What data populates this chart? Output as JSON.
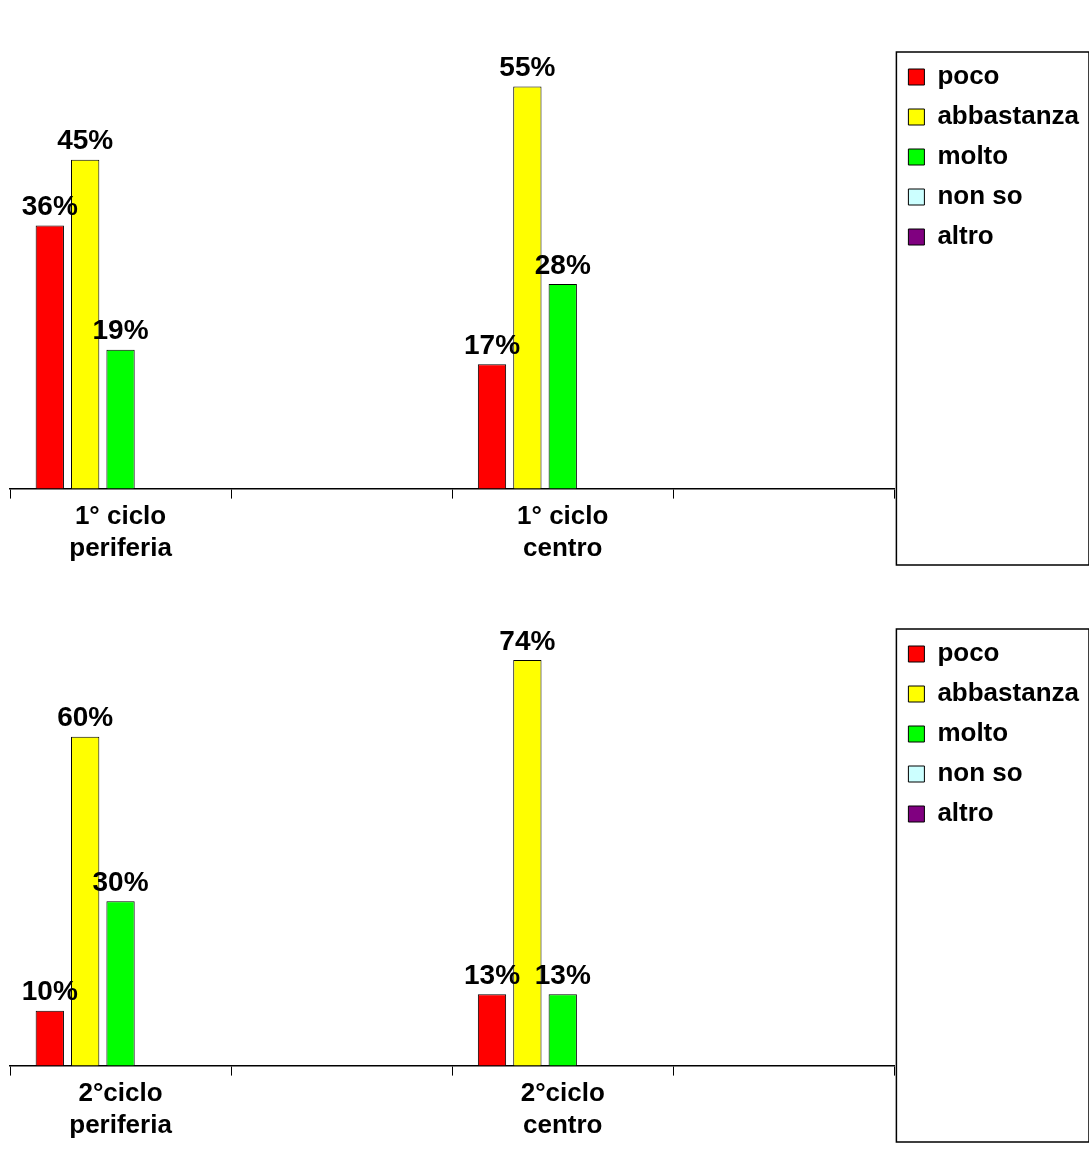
{
  "chart_data": [
    {
      "type": "bar",
      "categories": [
        "1° ciclo periferia",
        null,
        "1° ciclo centro",
        null
      ],
      "legend": "right",
      "series": [
        {
          "name": "poco",
          "color": "#ff0000",
          "values": [
            36,
            null,
            17,
            null
          ],
          "value_labels": [
            "36%",
            null,
            "17%",
            null
          ]
        },
        {
          "name": "abbastanza",
          "color": "#ffff00",
          "values": [
            45,
            null,
            55,
            null
          ],
          "value_labels": [
            "45%",
            null,
            "55%",
            null
          ]
        },
        {
          "name": "molto",
          "color": "#00ff00",
          "values": [
            19,
            null,
            28,
            null
          ],
          "value_labels": [
            "19%",
            null,
            "28%",
            null
          ]
        },
        {
          "name": "non so",
          "color": "#ccffff",
          "values": [
            null,
            null,
            null,
            null
          ]
        },
        {
          "name": "altro",
          "color": "#800080",
          "values": [
            null,
            null,
            null,
            null
          ]
        }
      ]
    },
    {
      "type": "bar",
      "categories": [
        "2°ciclo periferia",
        null,
        "2°ciclo centro",
        null
      ],
      "legend": "right",
      "series": [
        {
          "name": "poco",
          "color": "#ff0000",
          "values": [
            10,
            null,
            13,
            null
          ],
          "value_labels": [
            "10%",
            null,
            "13%",
            null
          ]
        },
        {
          "name": "abbastanza",
          "color": "#ffff00",
          "values": [
            60,
            null,
            74,
            null
          ],
          "value_labels": [
            "60%",
            null,
            "74%",
            null
          ]
        },
        {
          "name": "molto",
          "color": "#00ff00",
          "values": [
            30,
            null,
            13,
            null
          ],
          "value_labels": [
            "30%",
            null,
            "13%",
            null
          ]
        },
        {
          "name": "non so",
          "color": "#ccffff",
          "values": [
            null,
            null,
            null,
            null
          ]
        },
        {
          "name": "altro",
          "color": "#800080",
          "values": [
            null,
            null,
            null,
            null
          ]
        }
      ]
    }
  ]
}
